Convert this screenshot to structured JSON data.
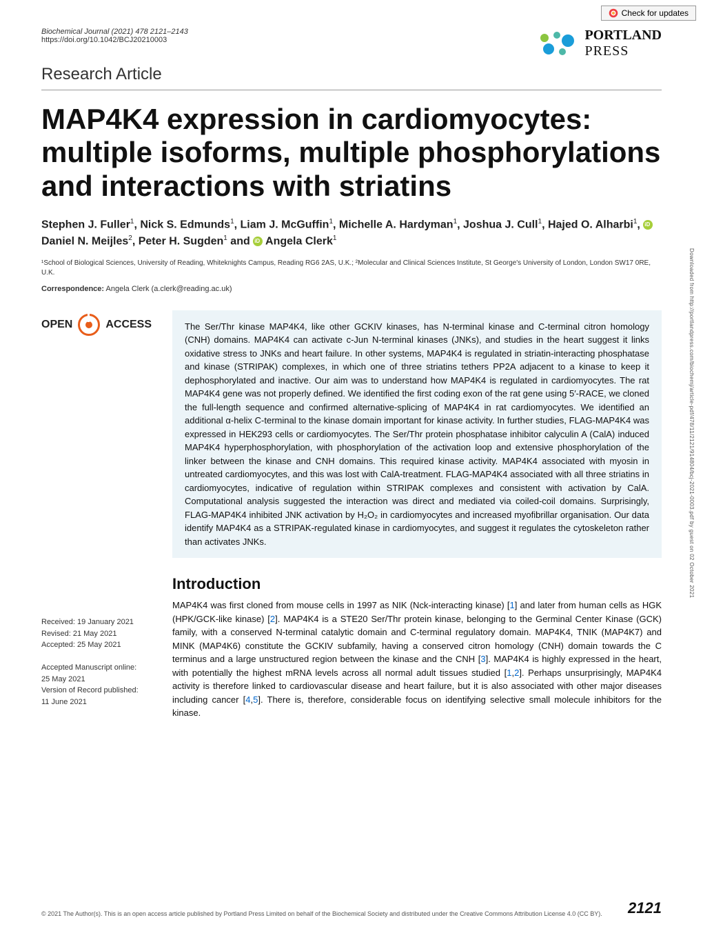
{
  "check_updates": "Check for updates",
  "journal": "Biochemical Journal (2021) 478 2121–2143",
  "doi": "https://doi.org/10.1042/BCJ20210003",
  "logo": {
    "line1": "PORTLAND",
    "line2": "PRESS"
  },
  "article_type": "Research Article",
  "title": "MAP4K4 expression in cardiomyocytes: multiple isoforms, multiple phosphorylations and interactions with striatins",
  "authors_html": "Stephen J. Fuller<sup>1</sup>, Nick S. Edmunds<sup>1</sup>, Liam J. McGuffin<sup>1</sup>, Michelle A. Hardyman<sup>1</sup>, Joshua J. Cull<sup>1</sup>, Hajed O. Alharbi<sup>1</sup>, <span class='orcid'></span> Daniel N. Meijles<sup>2</sup>, Peter H. Sugden<sup>1</sup> and <span class='orcid'></span> Angela Clerk<sup>1</sup>",
  "affiliations": "¹School of Biological Sciences, University of Reading, Whiteknights Campus, Reading RG6 2AS, U.K.; ²Molecular and Clinical Sciences Institute, St George's University of London, London SW17 0RE, U.K.",
  "correspondence_label": "Correspondence:",
  "correspondence_text": " Angela Clerk (a.clerk@reading.ac.uk)",
  "open_access_left": "OPEN",
  "open_access_right": "ACCESS",
  "abstract": "The Ser/Thr kinase MAP4K4, like other GCKIV kinases, has N-terminal kinase and C-terminal citron homology (CNH) domains. MAP4K4 can activate c-Jun N-terminal kinases (JNKs), and studies in the heart suggest it links oxidative stress to JNKs and heart failure. In other systems, MAP4K4 is regulated in striatin-interacting phosphatase and kinase (STRIPAK) complexes, in which one of three striatins tethers PP2A adjacent to a kinase to keep it dephosphorylated and inactive. Our aim was to understand how MAP4K4 is regulated in cardiomyocytes. The rat MAP4K4 gene was not properly defined. We identified the first coding exon of the rat gene using 5′-RACE, we cloned the full-length sequence and confirmed alternative-splicing of MAP4K4 in rat cardiomyocytes. We identified an additional α-helix C-terminal to the kinase domain important for kinase activity. In further studies, FLAG-MAP4K4 was expressed in HEK293 cells or cardiomyocytes. The Ser/Thr protein phosphatase inhibitor calyculin A (CalA) induced MAP4K4 hyperphosphorylation, with phosphorylation of the activation loop and extensive phosphorylation of the linker between the kinase and CNH domains. This required kinase activity. MAP4K4 associated with myosin in untreated cardiomyocytes, and this was lost with CalA-treatment. FLAG-MAP4K4 associated with all three striatins in cardiomyocytes, indicative of regulation within STRIPAK complexes and consistent with activation by CalA. Computational analysis suggested the interaction was direct and mediated via coiled-coil domains. Surprisingly, FLAG-MAP4K4 inhibited JNK activation by H₂O₂ in cardiomyocytes and increased myofibrillar organisation. Our data identify MAP4K4 as a STRIPAK-regulated kinase in cardiomyocytes, and suggest it regulates the cytoskeleton rather than activates JNKs.",
  "intro_heading": "Introduction",
  "intro_text_html": "MAP4K4 was first cloned from mouse cells in 1997 as NIK (Nck-interacting kinase) [<span class='ref-link'>1</span>] and later from human cells as HGK (HPK/GCK-like kinase) [<span class='ref-link'>2</span>]. MAP4K4 is a STE20 Ser/Thr protein kinase, belonging to the Germinal Center Kinase (GCK) family, with a conserved N-terminal catalytic domain and C-terminal regulatory domain. MAP4K4, TNIK (MAP4K7) and MINK (MAP4K6) constitute the GCKIV subfamily, having a conserved citron homology (CNH) domain towards the C terminus and a large unstructured region between the kinase and the CNH [<span class='ref-link'>3</span>]. MAP4K4 is highly expressed in the heart, with potentially the highest mRNA levels across all normal adult tissues studied [<span class='ref-link'>1</span>,<span class='ref-link'>2</span>]. Perhaps unsurprisingly, MAP4K4 activity is therefore linked to cardiovascular disease and heart failure, but it is also associated with other major diseases including cancer [<span class='ref-link'>4</span>,<span class='ref-link'>5</span>]. There is, therefore, considerable focus on identifying selective small molecule inhibitors for the kinase.",
  "dates": {
    "received": "Received: 19 January 2021",
    "revised": "Revised: 21 May 2021",
    "accepted": "Accepted: 25 May 2021",
    "manuscript_online_label": "Accepted Manuscript online:",
    "manuscript_online_date": "25 May 2021",
    "version_label": "Version of Record published:",
    "version_date": "11 June 2021"
  },
  "copyright": "© 2021 The Author(s). This is an open access article published by Portland Press Limited on behalf of the Biochemical Society and distributed under the Creative Commons Attribution License 4.0 (CC BY).",
  "page_number": "2121",
  "side_text": "Downloaded from http://portlandpress.com/biochemj/article-pdf/478/11/2121/914804/bcj-2021-0003.pdf by guest on 02 October 2021",
  "colors": {
    "abstract_bg": "#ecf4f8",
    "orange": "#e85d1a",
    "link": "#0066cc",
    "orcid": "#a6ce39",
    "logo_blue": "#1a9dd9",
    "logo_teal": "#4db8a8",
    "logo_green": "#8bc540"
  }
}
